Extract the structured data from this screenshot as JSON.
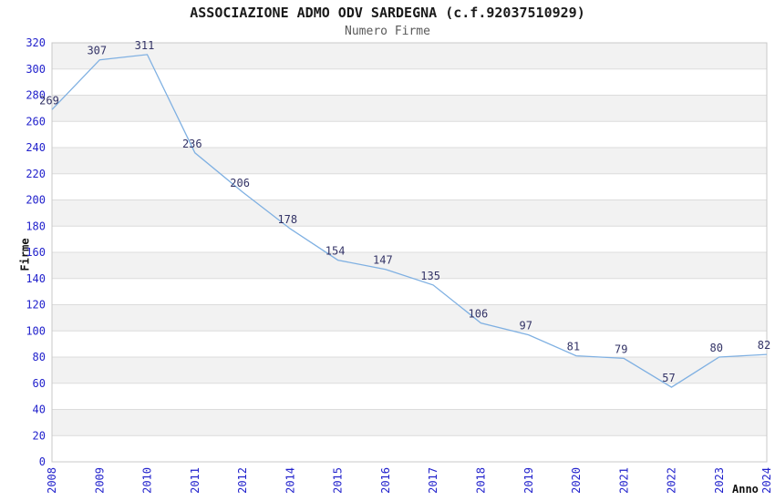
{
  "header": {
    "title": "ASSOCIAZIONE ADMO ODV SARDEGNA (c.f.92037510929)",
    "subtitle": "Numero Firme"
  },
  "axes": {
    "y_label": "Firme",
    "x_label": "Anno"
  },
  "colors": {
    "line": "#7fb0e2",
    "data_label": "#333366",
    "tick_label": "#2222cc",
    "band_gray": "#f2f2f2",
    "band_white": "#ffffff",
    "gridline": "#dcdcdc",
    "plot_border": "#c8c8c8",
    "title_text": "#1a1a1a",
    "subtitle_text": "#5a5a5a"
  },
  "chart_data": {
    "type": "line",
    "title": "ASSOCIAZIONE ADMO ODV SARDEGNA (c.f.92037510929)",
    "subtitle": "Numero Firme",
    "xlabel": "Anno",
    "ylabel": "Firme",
    "categories": [
      "2008",
      "2009",
      "2010",
      "2011",
      "2012",
      "2014",
      "2015",
      "2016",
      "2017",
      "2018",
      "2019",
      "2020",
      "2021",
      "2022",
      "2023",
      "2024"
    ],
    "values": [
      269,
      307,
      311,
      236,
      206,
      178,
      154,
      147,
      135,
      106,
      97,
      81,
      79,
      57,
      80,
      82
    ],
    "ylim": [
      0,
      320
    ],
    "ytick_step": 20,
    "grid": true,
    "legend_position": "none",
    "band_alternating": true,
    "data_labels_shown": true
  }
}
